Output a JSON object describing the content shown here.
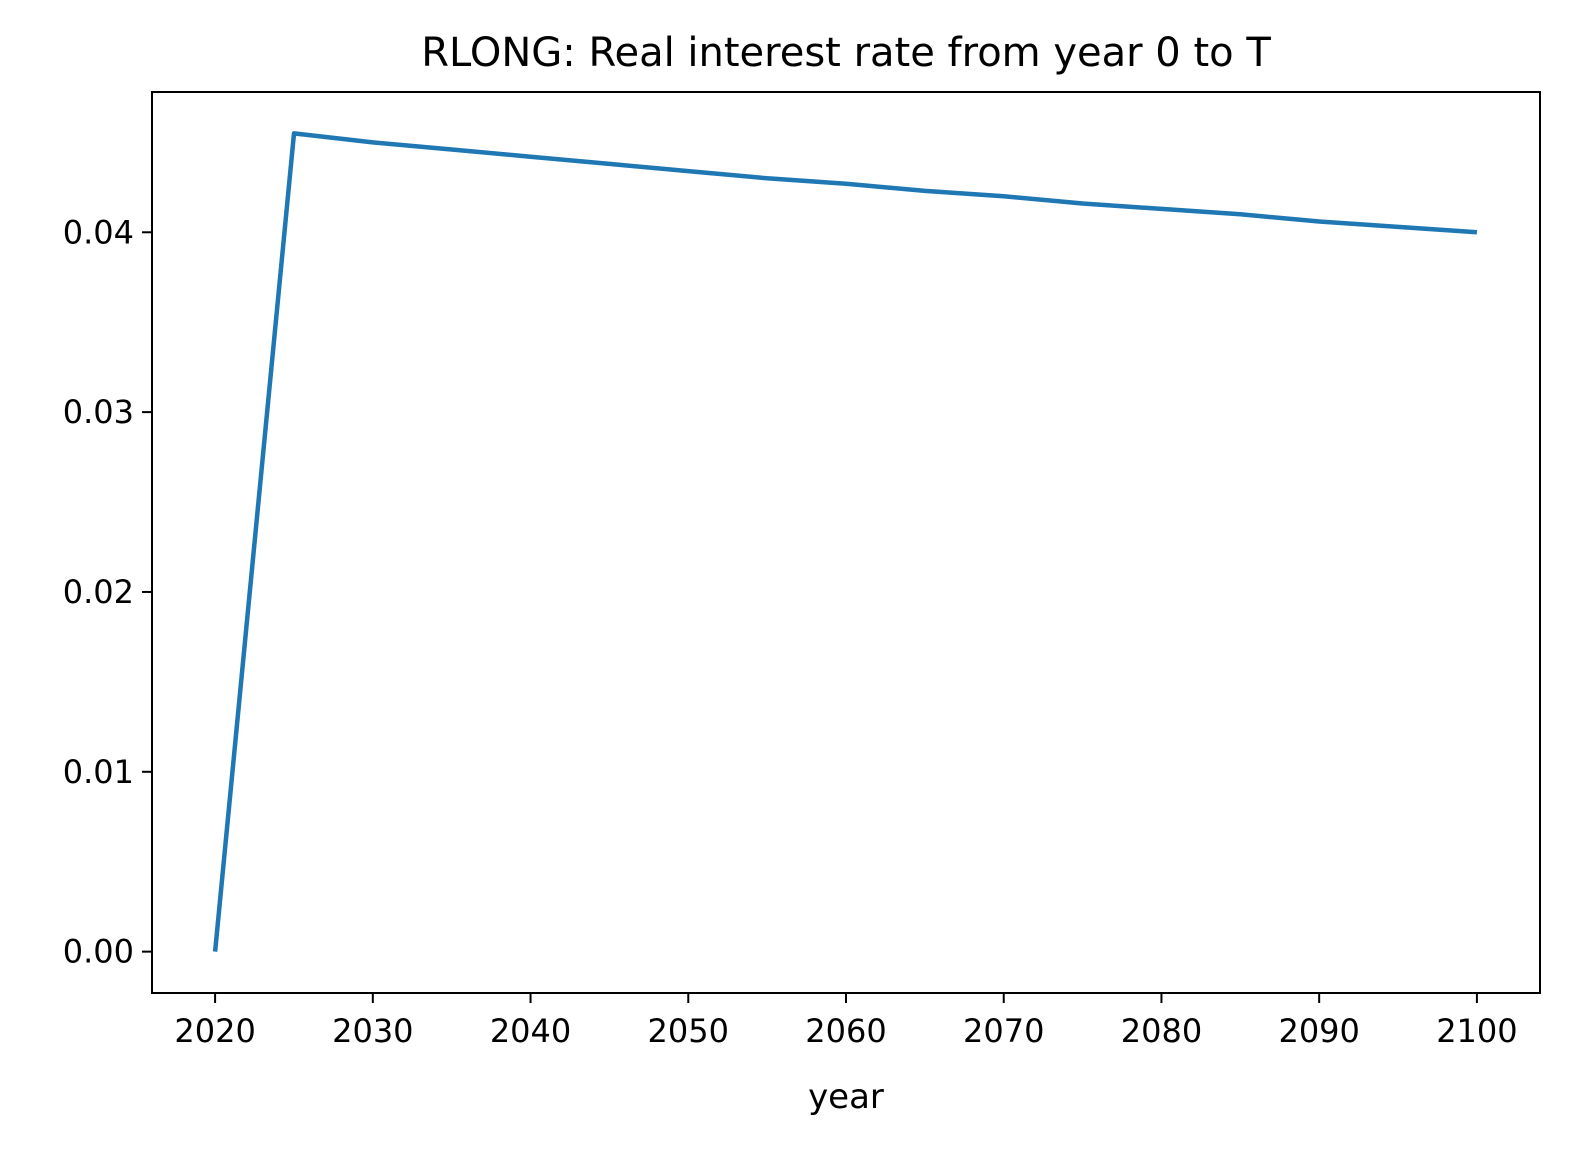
{
  "chart_data": {
    "type": "line",
    "title": "RLONG: Real interest rate from year 0 to T",
    "xlabel": "year",
    "ylabel": "",
    "xlim": [
      2016,
      2104
    ],
    "ylim": [
      -0.0023,
      0.0478
    ],
    "x_ticks": [
      2020,
      2030,
      2040,
      2050,
      2060,
      2070,
      2080,
      2090,
      2100
    ],
    "x_tick_labels": [
      "2020",
      "2030",
      "2040",
      "2050",
      "2060",
      "2070",
      "2080",
      "2090",
      "2100"
    ],
    "y_ticks": [
      0.0,
      0.01,
      0.02,
      0.03,
      0.04
    ],
    "y_tick_labels": [
      "0.00",
      "0.01",
      "0.02",
      "0.03",
      "0.04"
    ],
    "grid": false,
    "series": [
      {
        "color": "#1f77b4",
        "x": [
          2020,
          2025,
          2030,
          2035,
          2040,
          2045,
          2050,
          2055,
          2060,
          2065,
          2070,
          2075,
          2080,
          2085,
          2090,
          2095,
          2100
        ],
        "y": [
          0.0,
          0.0455,
          0.045,
          0.0446,
          0.0442,
          0.0438,
          0.0434,
          0.043,
          0.0427,
          0.0423,
          0.042,
          0.0416,
          0.0413,
          0.041,
          0.0406,
          0.0403,
          0.04
        ]
      }
    ]
  }
}
